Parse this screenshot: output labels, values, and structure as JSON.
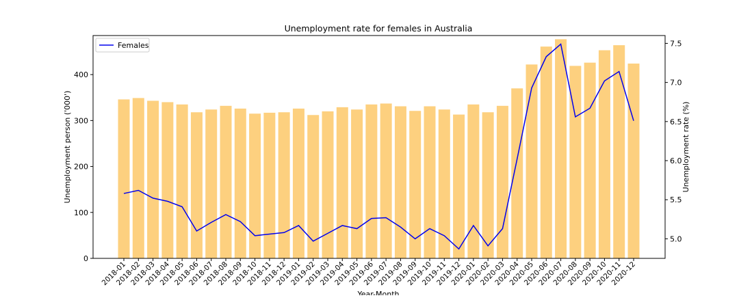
{
  "chart_data": {
    "type": "bar+line",
    "title": "Unemployment rate for females in Australia",
    "xlabel": "Year-Month",
    "ylabel_left": "Unemployment person ('000')",
    "ylabel_right": "Unemployment rate (%)",
    "categories": [
      "2018-01",
      "2018-02",
      "2018-03",
      "2018-04",
      "2018-05",
      "2018-06",
      "2018-07",
      "2018-08",
      "2018-09",
      "2018-10",
      "2018-11",
      "2018-12",
      "2019-01",
      "2019-02",
      "2019-03",
      "2019-04",
      "2019-05",
      "2019-06",
      "2019-07",
      "2019-08",
      "2019-09",
      "2019-10",
      "2019-11",
      "2019-12",
      "2020-01",
      "2020-02",
      "2020-03",
      "2020-04",
      "2020-05",
      "2020-06",
      "2020-07",
      "2020-08",
      "2020-09",
      "2020-10",
      "2020-11",
      "2020-12"
    ],
    "bars": {
      "values": [
        346,
        349,
        343,
        340,
        335,
        318,
        324,
        332,
        326,
        315,
        317,
        318,
        326,
        312,
        320,
        329,
        324,
        335,
        337,
        331,
        321,
        331,
        324,
        313,
        335,
        318,
        332,
        370,
        422,
        461,
        477,
        419,
        426,
        453,
        464,
        424
      ],
      "color": "#fdd07f",
      "ylim": [
        0,
        485
      ],
      "yticks": [
        0,
        100,
        200,
        300,
        400
      ]
    },
    "line": {
      "name": "Females",
      "color": "#0000ee",
      "values": [
        5.58,
        5.62,
        5.52,
        5.48,
        5.41,
        5.1,
        5.21,
        5.31,
        5.22,
        5.04,
        5.06,
        5.08,
        5.17,
        4.97,
        5.07,
        5.17,
        5.13,
        5.26,
        5.27,
        5.15,
        5.0,
        5.13,
        5.04,
        4.87,
        5.17,
        4.91,
        5.13,
        6.02,
        6.93,
        7.33,
        7.49,
        6.56,
        6.67,
        7.02,
        7.14,
        6.51
      ],
      "ylim": [
        4.75,
        7.6
      ],
      "yticks": [
        5.0,
        5.5,
        6.0,
        6.5,
        7.0,
        7.5
      ]
    },
    "legend": {
      "placement": "top-left"
    },
    "grid": false
  }
}
